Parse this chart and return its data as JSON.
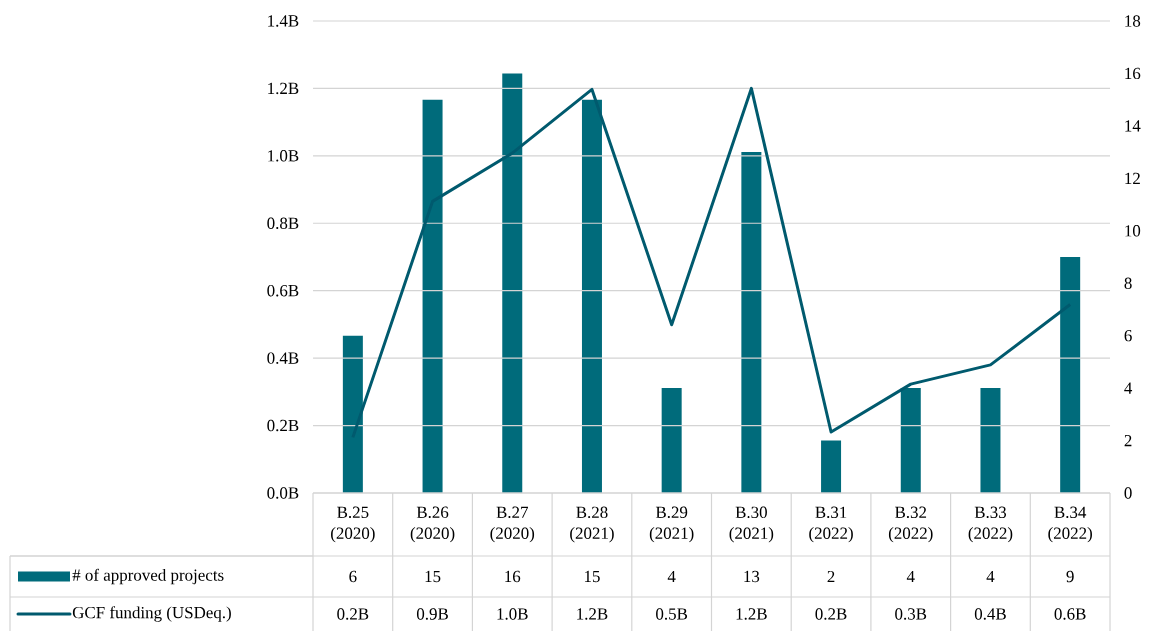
{
  "chart_data": {
    "type": "bar",
    "categories": [
      "B.25 (2020)",
      "B.26 (2020)",
      "B.27 (2020)",
      "B.28 (2021)",
      "B.29 (2021)",
      "B.30 (2021)",
      "B.31 (2022)",
      "B.32 (2022)",
      "B.33 (2022)",
      "B.34 (2022)"
    ],
    "legend": "bottom",
    "grid": "y",
    "ylim": [
      0,
      1.4
    ],
    "yticks": [
      {
        "value": 0,
        "label": "0.0B"
      },
      {
        "value": 0.2,
        "label": "0.2B"
      },
      {
        "value": 0.4,
        "label": "0.4B"
      },
      {
        "value": 0.6,
        "label": "0.6B"
      },
      {
        "value": 0.8,
        "label": "0.8B"
      },
      {
        "value": 1.0,
        "label": "1.0B"
      },
      {
        "value": 1.2,
        "label": "1.2B"
      },
      {
        "value": 1.4,
        "label": "1.4B"
      }
    ],
    "y2lim": [
      0,
      18
    ],
    "y2ticks": [
      0,
      2,
      4,
      6,
      8,
      10,
      12,
      14,
      16,
      18
    ],
    "series": [
      {
        "name": "# of approved projects",
        "axis": "y2",
        "color": "#006b7b",
        "values": [
          6,
          15,
          16,
          15,
          4,
          13,
          2,
          4,
          4,
          9
        ],
        "value_labels": [
          "6",
          "15",
          "16",
          "15",
          "4",
          "13",
          "2",
          "4",
          "4",
          "9"
        ]
      },
      {
        "name": "GCF funding (USDeq.)",
        "type": "line",
        "axis": "y",
        "color": "#005a6e",
        "values": [
          0.165,
          0.865,
          1.008,
          1.197,
          0.499,
          1.2,
          0.181,
          0.323,
          0.38,
          0.559
        ],
        "value_labels": [
          "0.2B",
          "0.9B",
          "1.0B",
          "1.2B",
          "0.5B",
          "1.2B",
          "0.2B",
          "0.3B",
          "0.4B",
          "0.6B"
        ]
      }
    ]
  }
}
